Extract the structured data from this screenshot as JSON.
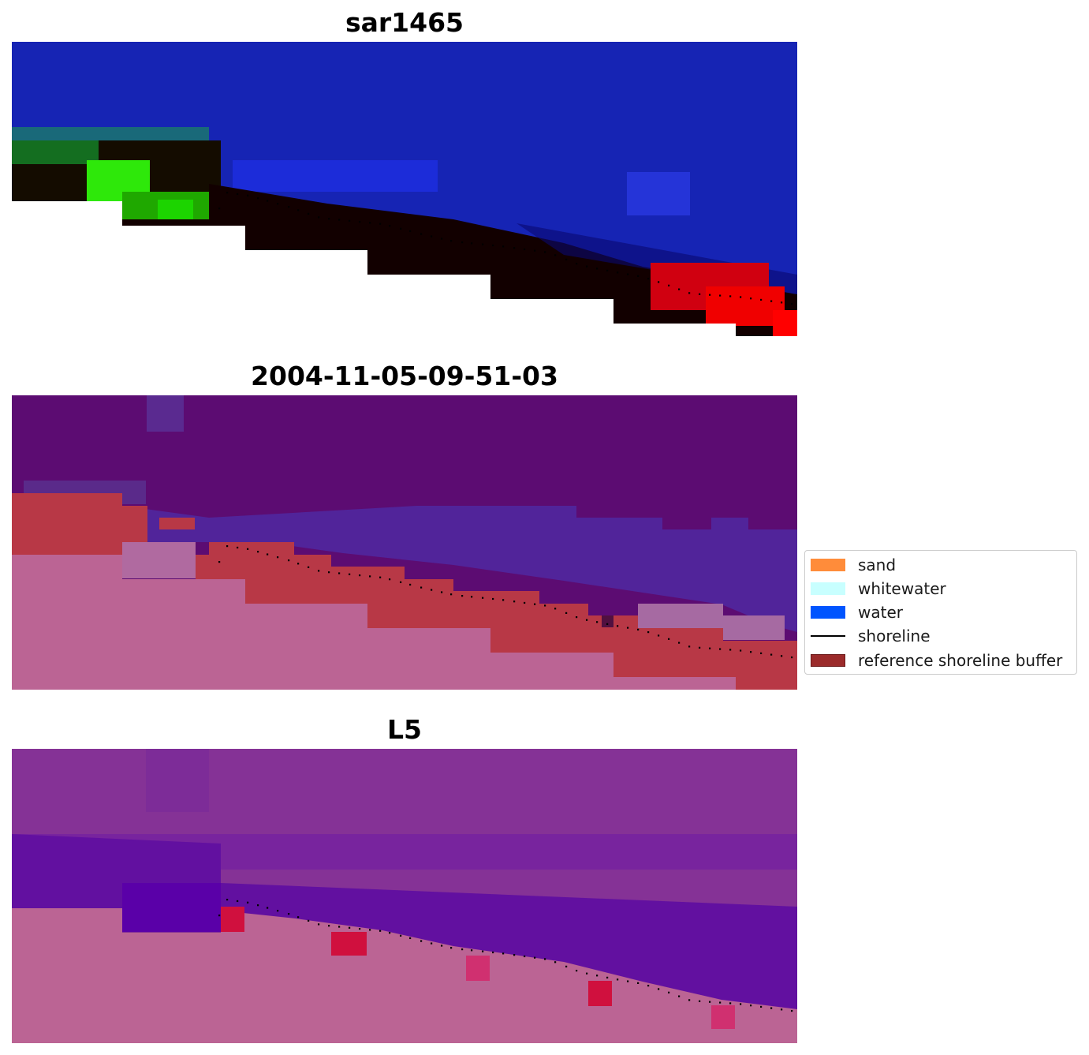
{
  "panels": [
    {
      "title": "sar1465",
      "kind": "rgb"
    },
    {
      "title": "2004-11-05-09-51-03",
      "kind": "classes"
    },
    {
      "title": "L5",
      "kind": "probability"
    }
  ],
  "legend": {
    "items": [
      {
        "label": "sand",
        "color": "#ff8c3a",
        "type": "patch"
      },
      {
        "label": "whitewater",
        "color": "#c8ffff",
        "type": "patch"
      },
      {
        "label": "water",
        "color": "#0055ff",
        "type": "patch"
      },
      {
        "label": "shoreline",
        "color": "#000000",
        "type": "line"
      },
      {
        "label": "reference shoreline buffer",
        "color": "#9b2b2b",
        "type": "patch"
      }
    ]
  },
  "colors": {
    "rgb_water": "#1624b4",
    "rgb_land_dark": "#120000",
    "rgb_vegetation": "#1fa800",
    "rgb_bright_red": "#f00000",
    "class_background": "#5c0c72",
    "class_water": "#51249a",
    "class_buffer": "#b83846",
    "class_land": "#bb6494",
    "prob_background": "#853296",
    "prob_water": "#6210a0",
    "prob_land": "#bb6494",
    "prob_hot": "#d0103e",
    "shoreline": "#000000"
  }
}
